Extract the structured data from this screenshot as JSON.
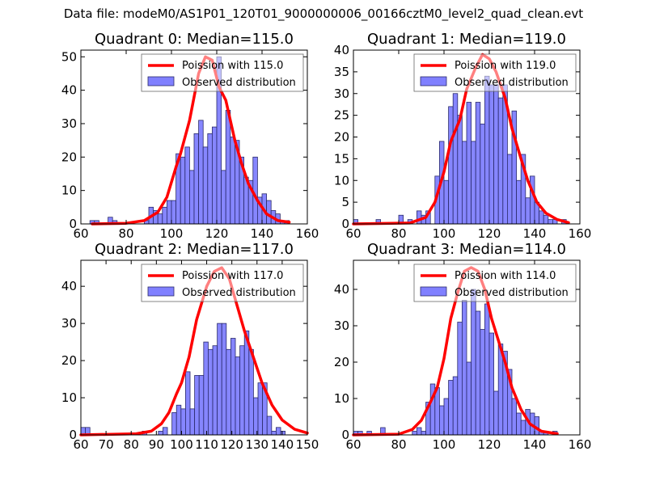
{
  "figure": {
    "suptitle": "Data file: modeM0/AS1P01_120T01_9000000006_00166cztM0_level2_quad_clean.evt"
  },
  "colors": {
    "bar_fill": "#8080ff",
    "bar_edge": "#2a2a6a",
    "poisson_line": "#ff0000"
  },
  "chart_data": [
    {
      "type": "bar",
      "title": "Quadrant 0: Median=115.0",
      "xlim": [
        60,
        160
      ],
      "ylim": [
        0,
        52
      ],
      "xticks": [
        "60",
        "80",
        "100",
        "120",
        "140",
        "160"
      ],
      "yticks": [
        "0",
        "10",
        "20",
        "30",
        "40",
        "50"
      ],
      "legend": {
        "placement": "top-right",
        "entries": [
          "Poission with 115.0",
          "Observed distribution"
        ]
      },
      "bin_width": 2,
      "bins": [
        [
          65,
          1
        ],
        [
          67,
          1
        ],
        [
          73,
          2
        ],
        [
          75,
          1
        ],
        [
          89,
          1
        ],
        [
          91,
          5
        ],
        [
          93,
          4
        ],
        [
          95,
          3
        ],
        [
          97,
          5
        ],
        [
          99,
          7
        ],
        [
          101,
          7
        ],
        [
          103,
          21
        ],
        [
          105,
          20
        ],
        [
          107,
          23
        ],
        [
          109,
          16
        ],
        [
          111,
          27
        ],
        [
          113,
          31
        ],
        [
          115,
          23
        ],
        [
          117,
          27
        ],
        [
          119,
          29
        ],
        [
          121,
          50
        ],
        [
          123,
          16
        ],
        [
          125,
          34
        ],
        [
          127,
          26
        ],
        [
          129,
          25
        ],
        [
          131,
          20
        ],
        [
          133,
          14
        ],
        [
          135,
          13
        ],
        [
          137,
          20
        ],
        [
          139,
          8
        ],
        [
          141,
          9
        ],
        [
          143,
          7
        ],
        [
          145,
          4
        ],
        [
          147,
          3
        ],
        [
          149,
          1
        ],
        [
          151,
          1
        ]
      ],
      "poisson": {
        "mean": 115.0,
        "peak": 50,
        "points": [
          [
            65,
            0
          ],
          [
            80,
            0.2
          ],
          [
            88,
            1
          ],
          [
            94,
            3.5
          ],
          [
            98,
            8
          ],
          [
            102,
            17
          ],
          [
            104,
            21
          ],
          [
            108,
            31
          ],
          [
            112,
            45
          ],
          [
            115,
            50
          ],
          [
            118,
            49
          ],
          [
            121,
            41
          ],
          [
            124,
            37
          ],
          [
            128,
            25
          ],
          [
            131,
            18
          ],
          [
            134,
            12
          ],
          [
            138,
            7
          ],
          [
            142,
            3
          ],
          [
            147,
            1
          ],
          [
            152,
            0.5
          ]
        ]
      }
    },
    {
      "type": "bar",
      "title": "Quadrant 1: Median=119.0",
      "xlim": [
        60,
        160
      ],
      "ylim": [
        0,
        40
      ],
      "xticks": [
        "60",
        "80",
        "100",
        "120",
        "140",
        "160"
      ],
      "yticks": [
        "0",
        "5",
        "10",
        "15",
        "20",
        "25",
        "30",
        "35",
        "40"
      ],
      "legend": {
        "placement": "top-right",
        "entries": [
          "Poission with 119.0",
          "Observed distribution"
        ]
      },
      "bin_width": 2,
      "bins": [
        [
          61,
          1
        ],
        [
          71,
          1
        ],
        [
          81,
          2
        ],
        [
          85,
          1
        ],
        [
          89,
          3
        ],
        [
          91,
          2
        ],
        [
          93,
          3
        ],
        [
          97,
          11
        ],
        [
          99,
          19
        ],
        [
          101,
          10
        ],
        [
          103,
          27
        ],
        [
          105,
          30
        ],
        [
          107,
          25
        ],
        [
          109,
          19
        ],
        [
          111,
          28
        ],
        [
          113,
          19
        ],
        [
          115,
          28
        ],
        [
          117,
          23
        ],
        [
          119,
          34
        ],
        [
          121,
          32
        ],
        [
          123,
          32
        ],
        [
          125,
          29
        ],
        [
          127,
          32
        ],
        [
          129,
          16
        ],
        [
          131,
          26
        ],
        [
          133,
          10
        ],
        [
          135,
          16
        ],
        [
          137,
          6
        ],
        [
          139,
          11
        ],
        [
          141,
          5
        ],
        [
          143,
          3
        ],
        [
          145,
          2
        ],
        [
          147,
          1
        ],
        [
          149,
          1
        ],
        [
          151,
          0
        ],
        [
          153,
          1
        ]
      ],
      "poisson": {
        "mean": 119.0,
        "peak": 39,
        "points": [
          [
            60,
            0
          ],
          [
            85,
            0.2
          ],
          [
            92,
            1.5
          ],
          [
            96,
            5
          ],
          [
            100,
            12
          ],
          [
            103,
            19
          ],
          [
            107,
            24
          ],
          [
            110,
            31
          ],
          [
            114,
            36
          ],
          [
            117,
            39
          ],
          [
            120,
            38
          ],
          [
            123,
            35
          ],
          [
            127,
            29
          ],
          [
            130,
            22
          ],
          [
            134,
            15
          ],
          [
            137,
            10
          ],
          [
            141,
            5
          ],
          [
            145,
            2.5
          ],
          [
            150,
            1
          ],
          [
            155,
            0.3
          ]
        ]
      }
    },
    {
      "type": "bar",
      "title": "Quadrant 2: Median=117.0",
      "xlim": [
        60,
        150
      ],
      "ylim": [
        0,
        47
      ],
      "xticks": [
        "60",
        "70",
        "80",
        "90",
        "100",
        "110",
        "120",
        "130",
        "140",
        "150"
      ],
      "yticks": [
        "0",
        "10",
        "20",
        "30",
        "40"
      ],
      "legend": {
        "placement": "top-right",
        "entries": [
          "Poission with 117.0",
          "Observed distribution"
        ]
      },
      "bin_width": 1.8,
      "bins": [
        [
          60.9,
          2
        ],
        [
          62.7,
          2
        ],
        [
          85.3,
          1
        ],
        [
          91.7,
          1
        ],
        [
          93.5,
          2
        ],
        [
          97.1,
          6
        ],
        [
          98.9,
          8
        ],
        [
          100.7,
          7
        ],
        [
          102.5,
          17
        ],
        [
          104.3,
          7
        ],
        [
          106.1,
          16
        ],
        [
          107.9,
          16
        ],
        [
          109.7,
          25
        ],
        [
          111.5,
          23
        ],
        [
          113.3,
          24
        ],
        [
          115.1,
          30
        ],
        [
          116.9,
          30
        ],
        [
          118.7,
          23
        ],
        [
          120.5,
          26
        ],
        [
          122.3,
          21
        ],
        [
          124.1,
          24
        ],
        [
          125.9,
          28
        ],
        [
          127.7,
          23
        ],
        [
          129.5,
          10
        ],
        [
          131.3,
          14
        ],
        [
          133.1,
          14
        ],
        [
          134.9,
          5
        ],
        [
          136.7,
          1
        ],
        [
          138.5,
          2
        ],
        [
          140.3,
          1
        ]
      ],
      "poisson": {
        "mean": 117.0,
        "peak": 45,
        "points": [
          [
            60,
            0
          ],
          [
            82,
            0.3
          ],
          [
            88,
            1
          ],
          [
            92,
            3
          ],
          [
            95,
            6
          ],
          [
            98,
            11
          ],
          [
            100,
            14
          ],
          [
            103,
            21
          ],
          [
            106,
            31
          ],
          [
            110,
            40
          ],
          [
            113,
            44
          ],
          [
            116,
            45
          ],
          [
            119,
            42
          ],
          [
            122,
            35
          ],
          [
            125,
            28
          ],
          [
            128,
            22
          ],
          [
            132,
            14
          ],
          [
            136,
            8
          ],
          [
            140,
            4
          ],
          [
            145,
            1.5
          ],
          [
            150,
            0.5
          ]
        ]
      }
    },
    {
      "type": "bar",
      "title": "Quadrant 3: Median=114.0",
      "xlim": [
        60,
        160
      ],
      "ylim": [
        0,
        48
      ],
      "xticks": [
        "60",
        "80",
        "100",
        "120",
        "140",
        "160"
      ],
      "yticks": [
        "0",
        "10",
        "20",
        "30",
        "40"
      ],
      "legend": {
        "placement": "top-right",
        "entries": [
          "Poission with 114.0",
          "Observed distribution"
        ]
      },
      "bin_width": 2,
      "bins": [
        [
          61,
          1
        ],
        [
          63,
          1
        ],
        [
          67,
          1
        ],
        [
          73,
          2
        ],
        [
          87,
          1
        ],
        [
          89,
          2
        ],
        [
          91,
          1
        ],
        [
          93,
          9
        ],
        [
          95,
          14
        ],
        [
          97,
          13
        ],
        [
          99,
          8
        ],
        [
          101,
          10
        ],
        [
          103,
          15
        ],
        [
          105,
          16
        ],
        [
          107,
          31
        ],
        [
          109,
          37
        ],
        [
          111,
          20
        ],
        [
          113,
          40
        ],
        [
          115,
          34
        ],
        [
          117,
          29
        ],
        [
          119,
          36
        ],
        [
          121,
          28
        ],
        [
          123,
          12
        ],
        [
          125,
          25
        ],
        [
          127,
          23
        ],
        [
          129,
          18
        ],
        [
          131,
          10
        ],
        [
          133,
          6
        ],
        [
          135,
          4
        ],
        [
          137,
          7
        ],
        [
          139,
          6
        ],
        [
          141,
          5
        ],
        [
          143,
          1
        ],
        [
          145,
          1
        ],
        [
          149,
          1
        ]
      ],
      "poisson": {
        "mean": 114.0,
        "peak": 46,
        "points": [
          [
            60,
            0
          ],
          [
            80,
            0.2
          ],
          [
            86,
            1.5
          ],
          [
            90,
            4
          ],
          [
            94,
            9
          ],
          [
            97,
            13
          ],
          [
            100,
            21
          ],
          [
            103,
            32
          ],
          [
            106,
            39
          ],
          [
            109,
            45
          ],
          [
            112,
            46
          ],
          [
            115,
            45
          ],
          [
            118,
            40
          ],
          [
            121,
            32
          ],
          [
            124,
            26
          ],
          [
            127,
            20
          ],
          [
            130,
            13
          ],
          [
            134,
            7
          ],
          [
            138,
            3
          ],
          [
            143,
            1
          ],
          [
            150,
            0.3
          ]
        ]
      }
    }
  ]
}
